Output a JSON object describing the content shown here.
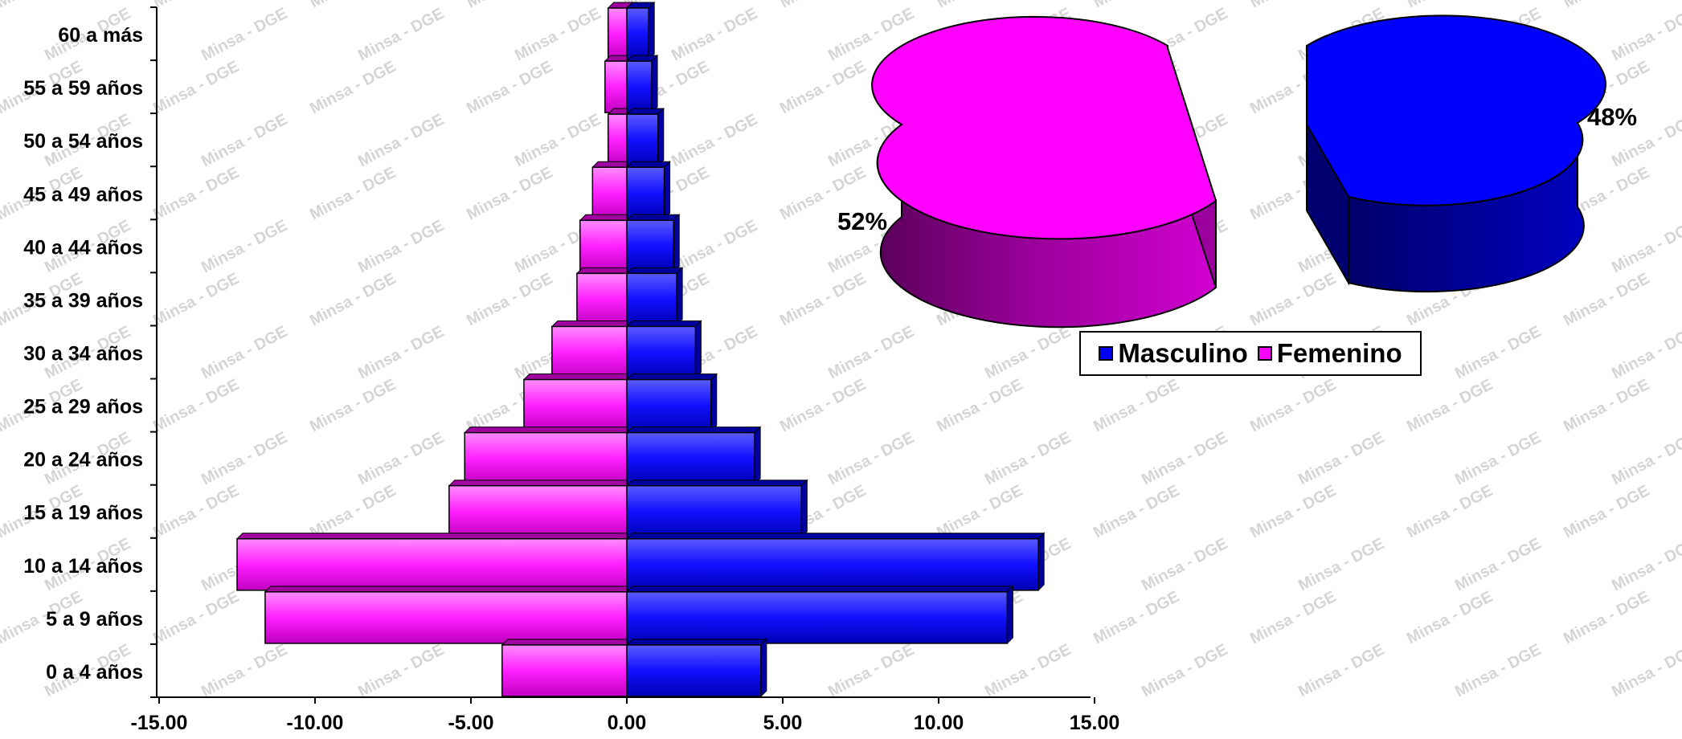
{
  "chart_data": [
    {
      "type": "bar",
      "orientation": "horizontal",
      "subtype": "population-pyramid",
      "categories": [
        "0 a 4 años",
        "5 a 9 años",
        "10 a 14 años",
        "15 a 19 años",
        "20 a 24 años",
        "25 a 29 años",
        "30 a 34 años",
        "35 a 39 años",
        "40 a 44 años",
        "45 a 49 años",
        "50 a 54 años",
        "55 a 59 años",
        "60 a más"
      ],
      "series": [
        {
          "name": "Masculino",
          "color": "#0000ff",
          "values": [
            4.3,
            12.2,
            13.2,
            5.6,
            4.1,
            2.7,
            2.2,
            1.6,
            1.5,
            1.2,
            1.0,
            0.8,
            0.7
          ]
        },
        {
          "name": "Femenino",
          "color": "#ff00ff",
          "values": [
            -4.0,
            -11.6,
            -12.5,
            -5.7,
            -5.2,
            -3.3,
            -2.4,
            -1.6,
            -1.5,
            -1.1,
            -0.6,
            -0.7,
            -0.6
          ]
        }
      ],
      "x_ticks": [
        "-15.00",
        "-10.00",
        "-5.00",
        "0.00",
        "5.00",
        "10.00",
        "15.00"
      ],
      "xlim": [
        -15,
        15
      ],
      "grid": false
    },
    {
      "type": "pie",
      "style": "3d-exploded",
      "slices": [
        {
          "name": "Masculino",
          "value": 48,
          "label": "48%",
          "color": "#0000ff"
        },
        {
          "name": "Femenino",
          "value": 52,
          "label": "52%",
          "color": "#ff00ff"
        }
      ]
    }
  ],
  "legend": {
    "items": [
      {
        "label": "Masculino",
        "color": "#0000ff"
      },
      {
        "label": "Femenino",
        "color": "#ff00ff"
      }
    ]
  },
  "watermark": "Minsa - DGE"
}
